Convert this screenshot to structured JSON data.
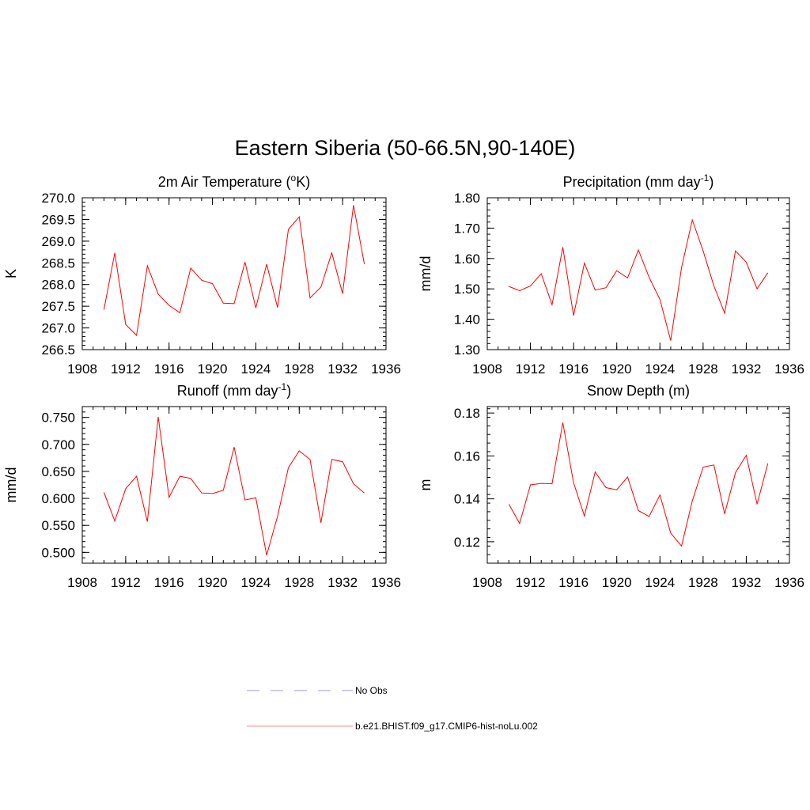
{
  "title": "Eastern Siberia (50-66.5N,90-140E)",
  "colors": {
    "series": "#ff0000",
    "obs": "#9999ee"
  },
  "legend": {
    "position": "bottom-center",
    "entries": [
      {
        "name": "No Obs",
        "style": "dashed",
        "color": "#9999ee"
      },
      {
        "name": "b.e21.BHIST.f09_g17.CMIP6-hist-noLu.002",
        "style": "solid",
        "color": "#ff0000"
      }
    ]
  },
  "chart_data": [
    {
      "type": "line",
      "title_main": "2m Air Temperature (",
      "title_sup": "o",
      "title_end": "K)",
      "ylabel": "K",
      "xlim": [
        1908,
        1936
      ],
      "ylim": [
        266.5,
        270.0
      ],
      "xticks": [
        "1908",
        "1912",
        "1916",
        "1920",
        "1924",
        "1928",
        "1932",
        "1936"
      ],
      "yticks": [
        "266.5",
        "267.0",
        "267.5",
        "268.0",
        "268.5",
        "269.0",
        "269.5",
        "270.0"
      ],
      "x": [
        1910,
        1911,
        1912,
        1913,
        1914,
        1915,
        1916,
        1917,
        1918,
        1919,
        1920,
        1921,
        1922,
        1923,
        1924,
        1925,
        1926,
        1927,
        1928,
        1929,
        1930,
        1931,
        1932,
        1933,
        1934
      ],
      "values": [
        267.42,
        268.73,
        267.08,
        266.83,
        268.43,
        267.78,
        267.52,
        267.35,
        268.38,
        268.1,
        268.02,
        267.57,
        267.56,
        268.52,
        267.46,
        268.47,
        267.47,
        269.27,
        269.56,
        267.69,
        267.94,
        268.73,
        267.79,
        269.83,
        268.47
      ]
    },
    {
      "type": "line",
      "title_main": "Precipitation (mm day",
      "title_sup": "-1",
      "title_end": ")",
      "ylabel": "mm/d",
      "xlim": [
        1908,
        1936
      ],
      "ylim": [
        1.3,
        1.8
      ],
      "xticks": [
        "1908",
        "1912",
        "1916",
        "1920",
        "1924",
        "1928",
        "1932",
        "1936"
      ],
      "yticks": [
        "1.30",
        "1.40",
        "1.50",
        "1.60",
        "1.70",
        "1.80"
      ],
      "x": [
        1910,
        1911,
        1912,
        1913,
        1914,
        1915,
        1916,
        1917,
        1918,
        1919,
        1920,
        1921,
        1922,
        1923,
        1924,
        1925,
        1926,
        1927,
        1928,
        1929,
        1930,
        1931,
        1932,
        1933,
        1934
      ],
      "values": [
        1.508,
        1.494,
        1.51,
        1.55,
        1.448,
        1.637,
        1.412,
        1.585,
        1.496,
        1.504,
        1.56,
        1.536,
        1.628,
        1.538,
        1.465,
        1.33,
        1.57,
        1.727,
        1.625,
        1.51,
        1.42,
        1.625,
        1.588,
        1.5,
        1.553
      ]
    },
    {
      "type": "line",
      "title_main": "Runoff (mm day",
      "title_sup": "-1",
      "title_end": ")",
      "ylabel": "mm/d",
      "xlim": [
        1908,
        1936
      ],
      "ylim": [
        0.48,
        0.77
      ],
      "xticks": [
        "1908",
        "1912",
        "1916",
        "1920",
        "1924",
        "1928",
        "1932",
        "1936"
      ],
      "yticks": [
        "0.500",
        "0.550",
        "0.600",
        "0.650",
        "0.700",
        "0.750"
      ],
      "x": [
        1910,
        1911,
        1912,
        1913,
        1914,
        1915,
        1916,
        1917,
        1918,
        1919,
        1920,
        1921,
        1922,
        1923,
        1924,
        1925,
        1926,
        1927,
        1928,
        1929,
        1930,
        1931,
        1932,
        1933,
        1934
      ],
      "values": [
        0.611,
        0.558,
        0.618,
        0.641,
        0.557,
        0.751,
        0.602,
        0.641,
        0.637,
        0.61,
        0.609,
        0.615,
        0.695,
        0.597,
        0.601,
        0.495,
        0.567,
        0.657,
        0.688,
        0.672,
        0.555,
        0.672,
        0.668,
        0.627,
        0.61
      ]
    },
    {
      "type": "line",
      "title_main": "Snow Depth (m)",
      "title_sup": "",
      "title_end": "",
      "ylabel": "m",
      "xlim": [
        1908,
        1936
      ],
      "ylim": [
        0.11,
        0.183
      ],
      "xticks": [
        "1908",
        "1912",
        "1916",
        "1920",
        "1924",
        "1928",
        "1932",
        "1936"
      ],
      "yticks": [
        "0.12",
        "0.14",
        "0.16",
        "0.18"
      ],
      "x": [
        1910,
        1911,
        1912,
        1913,
        1914,
        1915,
        1916,
        1917,
        1918,
        1919,
        1920,
        1921,
        1922,
        1923,
        1924,
        1925,
        1926,
        1927,
        1928,
        1929,
        1930,
        1931,
        1932,
        1933,
        1934
      ],
      "values": [
        0.1375,
        0.1285,
        0.1465,
        0.1472,
        0.147,
        0.1755,
        0.1475,
        0.132,
        0.1525,
        0.1452,
        0.1442,
        0.1502,
        0.1345,
        0.1318,
        0.1418,
        0.124,
        0.118,
        0.139,
        0.1548,
        0.1558,
        0.133,
        0.1522,
        0.1603,
        0.1375,
        0.1565
      ]
    }
  ]
}
